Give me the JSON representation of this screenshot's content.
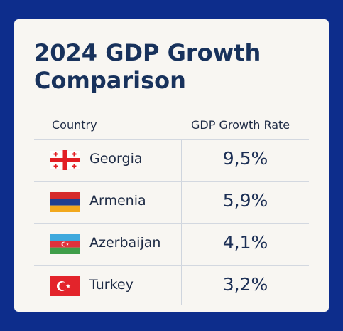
{
  "chart_data": {
    "type": "table",
    "title": "2024 GDP Growth Comparison",
    "columns": [
      "Country",
      "GDP Growth Rate"
    ],
    "rows": [
      {
        "country": "Georgia",
        "value": 9.5,
        "display": "9,5%",
        "flag": "georgia-flag"
      },
      {
        "country": "Armenia",
        "value": 5.9,
        "display": "5,9%",
        "flag": "armenia-flag"
      },
      {
        "country": "Azerbaijan",
        "value": 4.1,
        "display": "4,1%",
        "flag": "azerbaijan-flag"
      },
      {
        "country": "Turkey",
        "value": 3.2,
        "display": "3,2%",
        "flag": "turkey-flag"
      }
    ]
  },
  "colors": {
    "background": "#0d2d8c",
    "card": "#f8f6f2",
    "title": "#18325c",
    "text": "#1e2b45"
  }
}
